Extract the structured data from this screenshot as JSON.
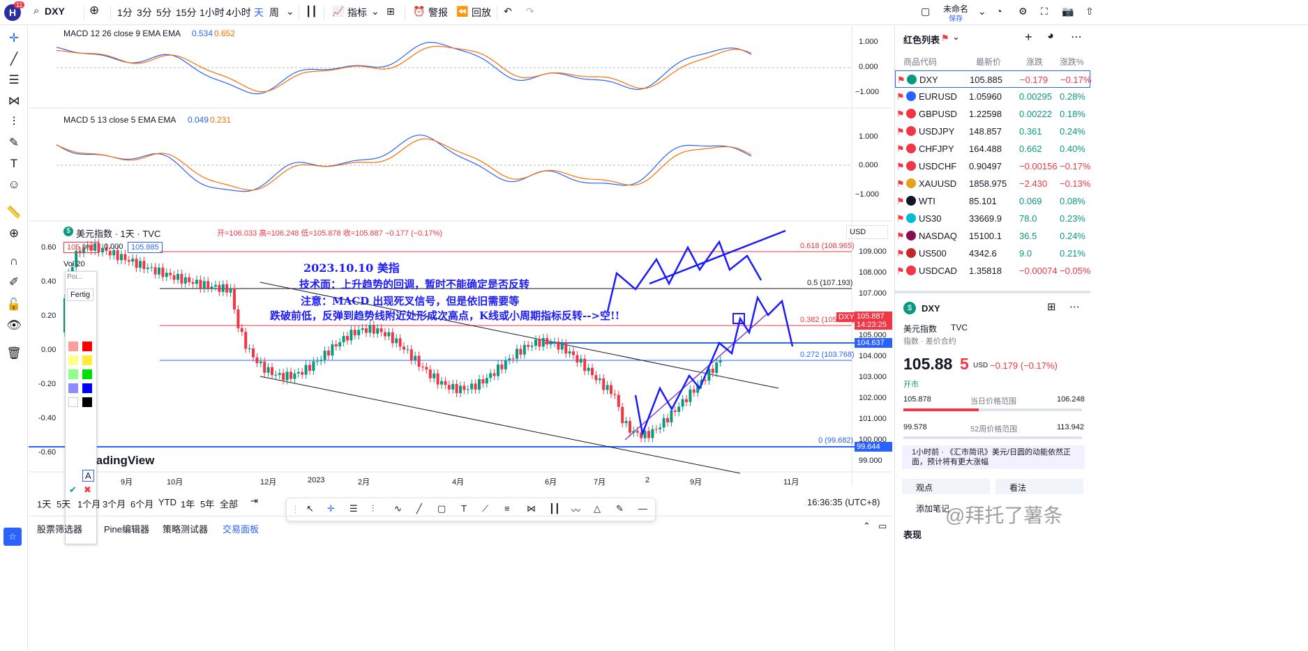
{
  "topbar": {
    "avatar_letter": "H",
    "avatar_badge": "11",
    "symbol": "DXY",
    "intervals": [
      "1分",
      "3分",
      "5分",
      "15分",
      "1小时",
      "4小时",
      "天",
      "周"
    ],
    "indicators_label": "指标",
    "alerts_label": "警报",
    "replay_label": "回放",
    "layout_name": "未命名",
    "layout_saved": "保存"
  },
  "macd1": {
    "title": "MACD 12 26 close 9 EMA EMA",
    "v1": "0.534",
    "v2": "0.652",
    "ticks": [
      "1.000",
      "0.000",
      "−1.000"
    ]
  },
  "macd2": {
    "title": "MACD 5 13 close 5 EMA EMA",
    "v1": "0.049",
    "v2": "0.231",
    "ticks": [
      "1.000",
      "0.000",
      "−1.000"
    ]
  },
  "main": {
    "title": "美元指数 · 1天 · TVC",
    "ohlc": "开=106.033 高=106.248 低=105.878 收=105.887 −0.177 (−0.17%)",
    "price_box1": "105.885",
    "price_box2": "0.000",
    "price_box3": "105.885",
    "vol": "Vol 20",
    "currency": "USD",
    "left_ticks": [
      "0.60",
      "0.40",
      "0.20",
      "0.00",
      "-0.20",
      "-0.40",
      "-0.60"
    ],
    "right_ticks": [
      "109.000",
      "108.000",
      "107.000",
      "105.000",
      "104.000",
      "103.000",
      "102.000",
      "101.000",
      "100.000",
      "99.000"
    ],
    "fib": [
      "0.618 (108.965)",
      "0.5 (107.193)",
      "0.382 (105.423)",
      "0.272 (103.768)",
      "0 (99.682)"
    ],
    "last_price": "105.887",
    "countdown": "14:23:25",
    "symbol_tag": "DXY",
    "level1": "104.637",
    "level2": "99.644",
    "note_title": "2023.10.10 美指",
    "note_line1": "技术面：上升趋势的回调，暂时不能确定是否反转",
    "note_line2": "注意：MACD 出现死叉信号，但是依旧需要等",
    "note_line3": "跌破前低，反弹到趋势线附近处形成次高点，K线或小周期指标反转-->空!!",
    "x_ticks": [
      "9月",
      "10月",
      "12月",
      "2023",
      "2月",
      "4月",
      "6月",
      "7月",
      "2",
      "9月",
      "11月"
    ],
    "watermark": "radingView",
    "fertig": "Fertig",
    "poi": "Poi..."
  },
  "bottombar": {
    "ranges": [
      "1天",
      "5天",
      "1个月",
      "3个月",
      "6个月",
      "YTD",
      "1年",
      "5年",
      "全部"
    ],
    "time": "16:36:35 (UTC+8)",
    "tabs": [
      "股票筛选器",
      "Pine编辑器",
      "策略测试器",
      "交易面板"
    ]
  },
  "watchlist": {
    "title": "红色列表",
    "headers": [
      "商品代码",
      "最新价",
      "涨跌",
      "涨跌%"
    ],
    "rows": [
      {
        "sym": "DXY",
        "price": "105.885",
        "chg": "−0.179",
        "pct": "−0.17%",
        "dir": "down",
        "icon": "#089981"
      },
      {
        "sym": "EURUSD",
        "price": "1.05960",
        "chg": "0.00295",
        "pct": "0.28%",
        "dir": "up",
        "icon": "#2962ff"
      },
      {
        "sym": "GBPUSD",
        "price": "1.22598",
        "chg": "0.00222",
        "pct": "0.18%",
        "dir": "up",
        "icon": "#f23645"
      },
      {
        "sym": "USDJPY",
        "price": "148.857",
        "chg": "0.361",
        "pct": "0.24%",
        "dir": "up",
        "icon": "#f23645"
      },
      {
        "sym": "CHFJPY",
        "price": "164.488",
        "chg": "0.662",
        "pct": "0.40%",
        "dir": "up",
        "icon": "#f23645"
      },
      {
        "sym": "USDCHF",
        "price": "0.90497",
        "chg": "−0.00156",
        "pct": "−0.17%",
        "dir": "down",
        "icon": "#f23645"
      },
      {
        "sym": "XAUUSD",
        "price": "1858.975",
        "chg": "−2.430",
        "pct": "−0.13%",
        "dir": "down",
        "icon": "#e3a21a"
      },
      {
        "sym": "WTI",
        "price": "85.101",
        "chg": "0.069",
        "pct": "0.08%",
        "dir": "up",
        "icon": "#131722"
      },
      {
        "sym": "US30",
        "price": "33669.9",
        "chg": "78.0",
        "pct": "0.23%",
        "dir": "up",
        "icon": "#00bcd4"
      },
      {
        "sym": "NASDAQ",
        "price": "15100.1",
        "chg": "36.5",
        "pct": "0.24%",
        "dir": "up",
        "icon": "#880e4f"
      },
      {
        "sym": "US500",
        "price": "4342.6",
        "chg": "9.0",
        "pct": "0.21%",
        "dir": "up",
        "icon": "#c62828"
      },
      {
        "sym": "USDCAD",
        "price": "1.35818",
        "chg": "−0.00074",
        "pct": "−0.05%",
        "dir": "down",
        "icon": "#f23645"
      }
    ]
  },
  "detail": {
    "symbol": "DXY",
    "name": "美元指数",
    "exchange": "TVC",
    "type": "指数 · 差价合约",
    "price_main": "105.88",
    "price_last": "5",
    "currency": "USD",
    "change": "−0.179 (−0.17%)",
    "status": "开市",
    "day_low": "105.878",
    "day_label": "当日价格范围",
    "day_high": "106.248",
    "w52_low": "99.578",
    "w52_label": "52周价格范围",
    "w52_high": "113.942",
    "news": "1小时前 · 《汇市简讯》美元/日圆的动能依然正面，预计将有更大涨幅",
    "btn_views": "观点",
    "btn_analysis": "看法",
    "btn_note": "添加笔记",
    "section": "表现"
  },
  "watermark_cn": "@拜托了薯条"
}
